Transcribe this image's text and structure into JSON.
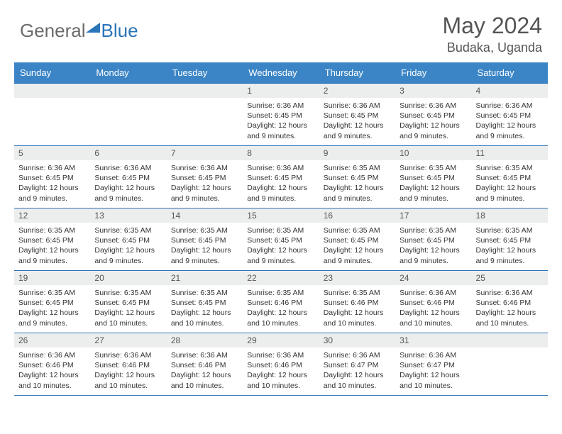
{
  "logo": {
    "word1": "General",
    "word2": "Blue"
  },
  "title": {
    "month": "May 2024",
    "location": "Budaka, Uganda"
  },
  "colors": {
    "header_bg": "#3b85c6",
    "border": "#2a74b8",
    "daynum_bg": "#eceded",
    "text": "#333333",
    "title_text": "#555555"
  },
  "daynames": [
    "Sunday",
    "Monday",
    "Tuesday",
    "Wednesday",
    "Thursday",
    "Friday",
    "Saturday"
  ],
  "weeks": [
    [
      null,
      null,
      null,
      {
        "n": "1",
        "sr": "6:36 AM",
        "ss": "6:45 PM",
        "dl": "12 hours and 9 minutes."
      },
      {
        "n": "2",
        "sr": "6:36 AM",
        "ss": "6:45 PM",
        "dl": "12 hours and 9 minutes."
      },
      {
        "n": "3",
        "sr": "6:36 AM",
        "ss": "6:45 PM",
        "dl": "12 hours and 9 minutes."
      },
      {
        "n": "4",
        "sr": "6:36 AM",
        "ss": "6:45 PM",
        "dl": "12 hours and 9 minutes."
      }
    ],
    [
      {
        "n": "5",
        "sr": "6:36 AM",
        "ss": "6:45 PM",
        "dl": "12 hours and 9 minutes."
      },
      {
        "n": "6",
        "sr": "6:36 AM",
        "ss": "6:45 PM",
        "dl": "12 hours and 9 minutes."
      },
      {
        "n": "7",
        "sr": "6:36 AM",
        "ss": "6:45 PM",
        "dl": "12 hours and 9 minutes."
      },
      {
        "n": "8",
        "sr": "6:36 AM",
        "ss": "6:45 PM",
        "dl": "12 hours and 9 minutes."
      },
      {
        "n": "9",
        "sr": "6:35 AM",
        "ss": "6:45 PM",
        "dl": "12 hours and 9 minutes."
      },
      {
        "n": "10",
        "sr": "6:35 AM",
        "ss": "6:45 PM",
        "dl": "12 hours and 9 minutes."
      },
      {
        "n": "11",
        "sr": "6:35 AM",
        "ss": "6:45 PM",
        "dl": "12 hours and 9 minutes."
      }
    ],
    [
      {
        "n": "12",
        "sr": "6:35 AM",
        "ss": "6:45 PM",
        "dl": "12 hours and 9 minutes."
      },
      {
        "n": "13",
        "sr": "6:35 AM",
        "ss": "6:45 PM",
        "dl": "12 hours and 9 minutes."
      },
      {
        "n": "14",
        "sr": "6:35 AM",
        "ss": "6:45 PM",
        "dl": "12 hours and 9 minutes."
      },
      {
        "n": "15",
        "sr": "6:35 AM",
        "ss": "6:45 PM",
        "dl": "12 hours and 9 minutes."
      },
      {
        "n": "16",
        "sr": "6:35 AM",
        "ss": "6:45 PM",
        "dl": "12 hours and 9 minutes."
      },
      {
        "n": "17",
        "sr": "6:35 AM",
        "ss": "6:45 PM",
        "dl": "12 hours and 9 minutes."
      },
      {
        "n": "18",
        "sr": "6:35 AM",
        "ss": "6:45 PM",
        "dl": "12 hours and 9 minutes."
      }
    ],
    [
      {
        "n": "19",
        "sr": "6:35 AM",
        "ss": "6:45 PM",
        "dl": "12 hours and 9 minutes."
      },
      {
        "n": "20",
        "sr": "6:35 AM",
        "ss": "6:45 PM",
        "dl": "12 hours and 10 minutes."
      },
      {
        "n": "21",
        "sr": "6:35 AM",
        "ss": "6:45 PM",
        "dl": "12 hours and 10 minutes."
      },
      {
        "n": "22",
        "sr": "6:35 AM",
        "ss": "6:46 PM",
        "dl": "12 hours and 10 minutes."
      },
      {
        "n": "23",
        "sr": "6:35 AM",
        "ss": "6:46 PM",
        "dl": "12 hours and 10 minutes."
      },
      {
        "n": "24",
        "sr": "6:36 AM",
        "ss": "6:46 PM",
        "dl": "12 hours and 10 minutes."
      },
      {
        "n": "25",
        "sr": "6:36 AM",
        "ss": "6:46 PM",
        "dl": "12 hours and 10 minutes."
      }
    ],
    [
      {
        "n": "26",
        "sr": "6:36 AM",
        "ss": "6:46 PM",
        "dl": "12 hours and 10 minutes."
      },
      {
        "n": "27",
        "sr": "6:36 AM",
        "ss": "6:46 PM",
        "dl": "12 hours and 10 minutes."
      },
      {
        "n": "28",
        "sr": "6:36 AM",
        "ss": "6:46 PM",
        "dl": "12 hours and 10 minutes."
      },
      {
        "n": "29",
        "sr": "6:36 AM",
        "ss": "6:46 PM",
        "dl": "12 hours and 10 minutes."
      },
      {
        "n": "30",
        "sr": "6:36 AM",
        "ss": "6:47 PM",
        "dl": "12 hours and 10 minutes."
      },
      {
        "n": "31",
        "sr": "6:36 AM",
        "ss": "6:47 PM",
        "dl": "12 hours and 10 minutes."
      },
      null
    ]
  ],
  "labels": {
    "sunrise": "Sunrise:",
    "sunset": "Sunset:",
    "daylight": "Daylight:"
  }
}
